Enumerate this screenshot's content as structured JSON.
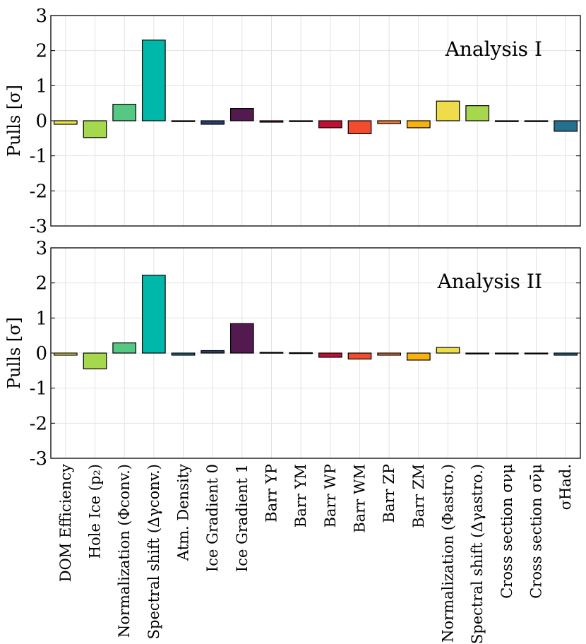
{
  "chart_data": {
    "type": "bar",
    "categories": [
      "DOM Efficiency",
      "Hole Ice (p₂)",
      "Normalization (Φconv.)",
      "Spectral shift (Δγconv.)",
      "Atm. Density",
      "Ice Gradient 0",
      "Ice Gradient 1",
      "Barr YP",
      "Barr YM",
      "Barr WP",
      "Barr WM",
      "Barr ZP",
      "Barr ZM",
      "Normalization (Φastro.)",
      "Spectral shift (Δγastro.)",
      "Cross section σνμ",
      "Cross section σν̄μ",
      "σHad."
    ],
    "bar_colors": [
      "#f0e442",
      "#a6d84e",
      "#55c983",
      "#00b8a9",
      "#1f6f8b",
      "#2b3f6e",
      "#521a4e",
      "#7a1340",
      "#961138",
      "#c20e35",
      "#f24b2e",
      "#f57a2c",
      "#f7b20f",
      "#eedc4b",
      "#a6d84e",
      "#55c983",
      "#2aa899",
      "#24708e"
    ],
    "ylabel": "Pulls [σ]",
    "ylim": [
      -3,
      3
    ],
    "yticks": [
      "3",
      "2",
      "1",
      "0",
      "-1",
      "-2",
      "-3"
    ],
    "grid": true,
    "panels": [
      {
        "title": "Analysis I",
        "values": [
          -0.1,
          -0.48,
          0.47,
          2.3,
          -0.02,
          -0.1,
          0.35,
          -0.04,
          -0.02,
          -0.2,
          -0.37,
          -0.08,
          -0.2,
          0.56,
          0.43,
          0.0,
          0.0,
          -0.3
        ]
      },
      {
        "title": "Analysis II",
        "values": [
          -0.06,
          -0.45,
          0.29,
          2.22,
          -0.06,
          0.07,
          0.84,
          0.02,
          0.01,
          -0.12,
          -0.17,
          -0.06,
          -0.2,
          0.16,
          0.0,
          0.0,
          0.0,
          -0.06
        ]
      }
    ]
  }
}
